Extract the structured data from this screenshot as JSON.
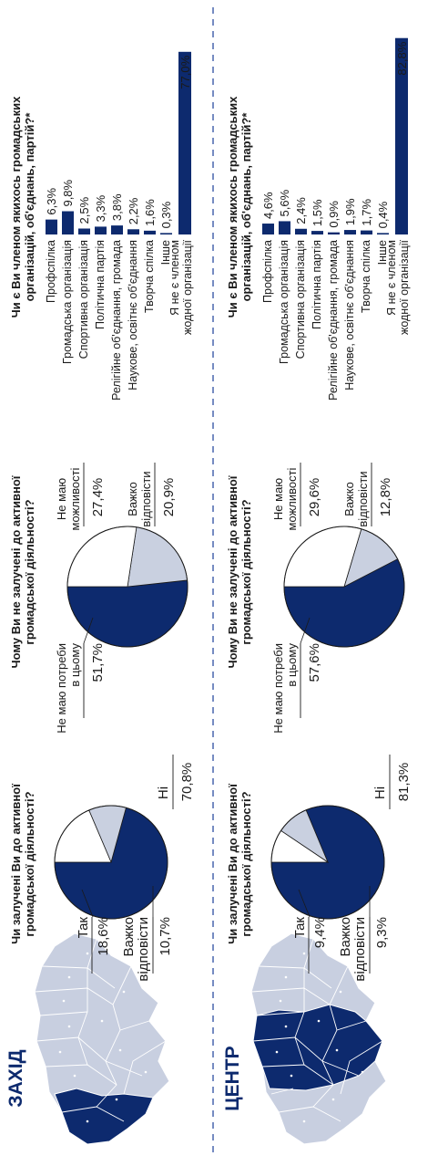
{
  "colors": {
    "navy": "#0d2a6e",
    "light": "#c9d0e0",
    "white": "#ffffff",
    "map_base": "#c8cfe0",
    "dash": "#3b5aa8",
    "text": "#1a1a1a"
  },
  "chart_data": [
    {
      "region": "ЗАХІД",
      "map_label": "Western regions highlighted",
      "charts": [
        {
          "type": "pie",
          "title_lines": [
            "Чи залучені Ви до активної",
            "громадської діяльності?"
          ],
          "slices": [
            {
              "label": "Ні",
              "value": 70.8,
              "color": "navy"
            },
            {
              "label": "Важко відповісти",
              "value": 10.7,
              "color": "light"
            },
            {
              "label": "Так",
              "value": 18.6,
              "color": "white"
            }
          ],
          "labels": {
            "tak": {
              "text": "Так",
              "value": "18,6%"
            },
            "vazhko": {
              "text_lines": [
                "Важко",
                "відповісти"
              ],
              "value": "10,7%"
            },
            "ni": {
              "text": "Ні",
              "value": "70,8%"
            }
          }
        },
        {
          "type": "pie",
          "title_lines": [
            "Чому Ви не залучені до активної",
            "громадської діяльності?"
          ],
          "slices": [
            {
              "label": "Не маю потреби в цьому",
              "value": 51.7,
              "color": "navy"
            },
            {
              "label": "Важко відповісти",
              "value": 20.9,
              "color": "light"
            },
            {
              "label": "Не маю можливості",
              "value": 27.4,
              "color": "white"
            }
          ],
          "labels": {
            "potreby": {
              "text_lines": [
                "Не маю потреби",
                "в цьому"
              ],
              "value": "51,7%"
            },
            "mozhl": {
              "text_lines": [
                "Не маю",
                "можливості"
              ],
              "value": "27,4%"
            },
            "vazhko": {
              "text_lines": [
                "Важко",
                "відповісти"
              ],
              "value": "20,9%"
            }
          }
        },
        {
          "type": "bar",
          "title_lines": [
            "Чи є Ви членом якихось громадських",
            "організацій, об'єднань, партій?*"
          ],
          "categories": [
            "Профспілка",
            "Громадська організація",
            "Спортивна організація",
            "Політична партія",
            "Релігійне об'єднання, громада",
            "Наукове, освітнє об'єднання",
            "Творча спілка",
            "Інше",
            "Я не є членом жодної організації"
          ],
          "values": [
            6.3,
            9.8,
            2.5,
            3.3,
            3.8,
            2.2,
            1.6,
            0.3,
            77.0
          ],
          "value_labels": [
            "6,3%",
            "9,8%",
            "2,5%",
            "3,3%",
            "3,8%",
            "2,2%",
            "1,6%",
            "0,3%",
            "77,0%"
          ]
        }
      ]
    },
    {
      "region": "ЦЕНТР",
      "map_label": "Central regions highlighted",
      "charts": [
        {
          "type": "pie",
          "title_lines": [
            "Чи залучені Ви до активної",
            "громадської діяльності?"
          ],
          "slices": [
            {
              "label": "Ні",
              "value": 81.3,
              "color": "navy"
            },
            {
              "label": "Важко відповісти",
              "value": 9.3,
              "color": "light"
            },
            {
              "label": "Так",
              "value": 9.4,
              "color": "white"
            }
          ],
          "labels": {
            "tak": {
              "text": "Так",
              "value": "9,4%"
            },
            "vazhko": {
              "text_lines": [
                "Важко",
                "відповісти"
              ],
              "value": "9,3%"
            },
            "ni": {
              "text": "Ні",
              "value": "81,3%"
            }
          }
        },
        {
          "type": "pie",
          "title_lines": [
            "Чому Ви не залучені до активної",
            "громадської діяльності?"
          ],
          "slices": [
            {
              "label": "Не маю потреби в цьому",
              "value": 57.6,
              "color": "navy"
            },
            {
              "label": "Важко відповісти",
              "value": 12.8,
              "color": "light"
            },
            {
              "label": "Не маю можливості",
              "value": 29.6,
              "color": "white"
            }
          ],
          "labels": {
            "potreby": {
              "text_lines": [
                "Не маю потреби",
                "в цьому"
              ],
              "value": "57,6%"
            },
            "mozhl": {
              "text_lines": [
                "Не маю",
                "можливості"
              ],
              "value": "29,6%"
            },
            "vazhko": {
              "text_lines": [
                "Важко",
                "відповісти"
              ],
              "value": "12,8%"
            }
          }
        },
        {
          "type": "bar",
          "title_lines": [
            "Чи є Ви членом якихось громадських",
            "організацій, об'єднань, партій?*"
          ],
          "categories": [
            "Профспілка",
            "Громадська організація",
            "Спортивна організація",
            "Політична партія",
            "Релігійне об'єднання, громада",
            "Наукове, освітнє об'єднання",
            "Творча спілка",
            "Інше",
            "Я не є членом жодної організації"
          ],
          "values": [
            4.6,
            5.6,
            2.4,
            1.5,
            0.9,
            1.9,
            1.7,
            0.4,
            82.8
          ],
          "value_labels": [
            "4,6%",
            "5,6%",
            "2,4%",
            "1,5%",
            "0,9%",
            "1,9%",
            "1,7%",
            "0,4%",
            "82,8%"
          ]
        }
      ]
    }
  ]
}
